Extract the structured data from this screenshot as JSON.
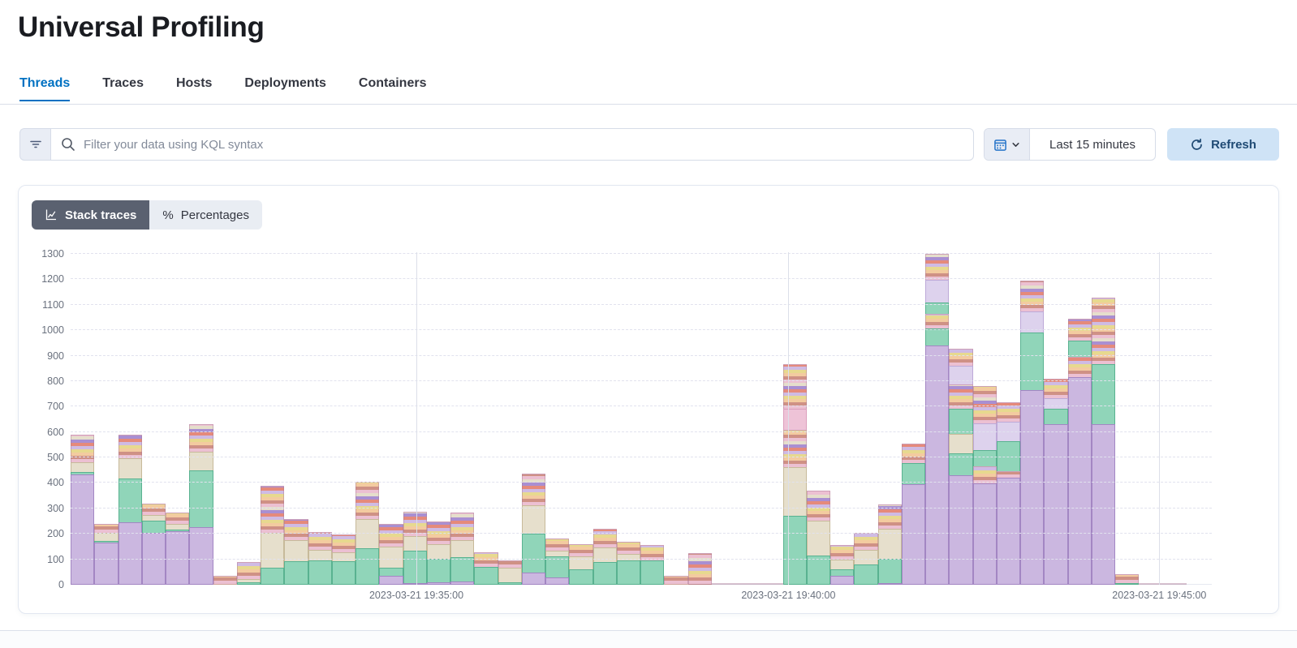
{
  "page": {
    "title": "Universal Profiling"
  },
  "tabs": [
    {
      "label": "Threads",
      "active": true
    },
    {
      "label": "Traces",
      "active": false
    },
    {
      "label": "Hosts",
      "active": false
    },
    {
      "label": "Deployments",
      "active": false
    },
    {
      "label": "Containers",
      "active": false
    }
  ],
  "search": {
    "placeholder": "Filter your data using KQL syntax",
    "value": "",
    "icons": [
      "filter-icon",
      "search-icon"
    ]
  },
  "time_picker": {
    "label": "Last 15 minutes",
    "icons": [
      "calendar-icon",
      "chevron-down-icon"
    ]
  },
  "refresh": {
    "label": "Refresh",
    "icon": "refresh-icon"
  },
  "view_toggle": [
    {
      "label": "Stack traces",
      "selected": true,
      "icon": "chart-line-icon"
    },
    {
      "label": "Percentages",
      "selected": false,
      "icon": "percent-icon",
      "glyph": "%"
    }
  ],
  "colors": {
    "accent_blue": "#0071c2",
    "refresh_bg": "#cfe3f6",
    "toggle_selected_bg": "#5a6170",
    "segment_purple": "#cbb7e0",
    "segment_green": "#90d5b9",
    "segment_tan": "#e6dfcc",
    "segment_lavender": "#ddd2ed",
    "segment_pink": "#eec3d7"
  },
  "chart_data": {
    "type": "bar",
    "stacked": true,
    "title": "",
    "xlabel": "",
    "ylabel": "",
    "ylim": [
      0,
      1300
    ],
    "grid": true,
    "legend": false,
    "y_ticks": [
      0,
      100,
      200,
      300,
      400,
      500,
      600,
      700,
      800,
      900,
      1000,
      1100,
      1200,
      1300
    ],
    "x_gridlines": [
      {
        "label": "2023-03-21 19:35:00",
        "pos_pct": 30.3
      },
      {
        "label": "2023-03-21 19:40:00",
        "pos_pct": 62.9
      },
      {
        "label": "2023-03-21 19:45:00",
        "pos_pct": 95.4
      }
    ],
    "segment_legend": {
      "P": "purple",
      "G": "green",
      "T": "tan",
      "L": "lavender",
      "K": "pink",
      "M": "mixed-stripes"
    },
    "bars": [
      {
        "total": 600,
        "segments": [
          [
            "P",
            435
          ],
          [
            "G",
            12
          ],
          [
            "T",
            40
          ],
          [
            "M",
            113
          ]
        ]
      },
      {
        "total": 250,
        "segments": [
          [
            "P",
            165
          ],
          [
            "G",
            10
          ],
          [
            "T",
            35
          ],
          [
            "M",
            40
          ]
        ]
      },
      {
        "total": 600,
        "segments": [
          [
            "P",
            245
          ],
          [
            "G",
            175
          ],
          [
            "T",
            85
          ],
          [
            "M",
            95
          ]
        ]
      },
      {
        "total": 330,
        "segments": [
          [
            "P",
            205
          ],
          [
            "G",
            50
          ],
          [
            "T",
            25
          ],
          [
            "M",
            50
          ]
        ]
      },
      {
        "total": 295,
        "segments": [
          [
            "P",
            210
          ],
          [
            "G",
            10
          ],
          [
            "T",
            25
          ],
          [
            "M",
            50
          ]
        ]
      },
      {
        "total": 640,
        "segments": [
          [
            "P",
            225
          ],
          [
            "G",
            228
          ],
          [
            "T",
            77
          ],
          [
            "M",
            110
          ]
        ]
      },
      {
        "total": 35,
        "segments": [
          [
            "M",
            35
          ]
        ]
      },
      {
        "total": 95,
        "segments": [
          [
            "G",
            10
          ],
          [
            "T",
            15
          ],
          [
            "M",
            70
          ]
        ]
      },
      {
        "total": 395,
        "segments": [
          [
            "G",
            68
          ],
          [
            "T",
            140
          ],
          [
            "M",
            187
          ]
        ]
      },
      {
        "total": 265,
        "segments": [
          [
            "G",
            92
          ],
          [
            "T",
            88
          ],
          [
            "M",
            85
          ]
        ]
      },
      {
        "total": 215,
        "segments": [
          [
            "G",
            95
          ],
          [
            "T",
            45
          ],
          [
            "M",
            75
          ]
        ]
      },
      {
        "total": 205,
        "segments": [
          [
            "G",
            92
          ],
          [
            "T",
            38
          ],
          [
            "M",
            75
          ]
        ]
      },
      {
        "total": 410,
        "segments": [
          [
            "G",
            145
          ],
          [
            "T",
            115
          ],
          [
            "M",
            150
          ]
        ]
      },
      {
        "total": 250,
        "segments": [
          [
            "P",
            35
          ],
          [
            "G",
            35
          ],
          [
            "T",
            85
          ],
          [
            "M",
            95
          ]
        ]
      },
      {
        "total": 295,
        "segments": [
          [
            "P",
            5
          ],
          [
            "G",
            130
          ],
          [
            "T",
            60
          ],
          [
            "M",
            100
          ]
        ]
      },
      {
        "total": 257,
        "segments": [
          [
            "P",
            10
          ],
          [
            "G",
            95
          ],
          [
            "T",
            60
          ],
          [
            "M",
            92
          ]
        ]
      },
      {
        "total": 292,
        "segments": [
          [
            "P",
            12
          ],
          [
            "G",
            100
          ],
          [
            "T",
            70
          ],
          [
            "M",
            110
          ]
        ]
      },
      {
        "total": 132,
        "segments": [
          [
            "G",
            70
          ],
          [
            "M",
            62
          ]
        ]
      },
      {
        "total": 102,
        "segments": [
          [
            "G",
            10
          ],
          [
            "T",
            60
          ],
          [
            "M",
            32
          ]
        ]
      },
      {
        "total": 445,
        "segments": [
          [
            "P",
            48
          ],
          [
            "G",
            155
          ],
          [
            "T",
            115
          ],
          [
            "M",
            127
          ]
        ]
      },
      {
        "total": 190,
        "segments": [
          [
            "P",
            30
          ],
          [
            "G",
            85
          ],
          [
            "T",
            25
          ],
          [
            "M",
            50
          ]
        ]
      },
      {
        "total": 165,
        "segments": [
          [
            "G",
            60
          ],
          [
            "T",
            55
          ],
          [
            "M",
            50
          ]
        ]
      },
      {
        "total": 227,
        "segments": [
          [
            "G",
            90
          ],
          [
            "T",
            60
          ],
          [
            "M",
            77
          ]
        ]
      },
      {
        "total": 175,
        "segments": [
          [
            "G",
            95
          ],
          [
            "T",
            30
          ],
          [
            "M",
            50
          ]
        ]
      },
      {
        "total": 160,
        "segments": [
          [
            "G",
            95
          ],
          [
            "M",
            65
          ]
        ]
      },
      {
        "total": 35,
        "segments": [
          [
            "M",
            35
          ]
        ]
      },
      {
        "total": 124,
        "segments": [
          [
            "M",
            124
          ]
        ]
      },
      {
        "total": 2,
        "segments": [
          [
            "M",
            2
          ]
        ]
      },
      {
        "total": 6,
        "segments": [
          [
            "M",
            6
          ]
        ]
      },
      {
        "total": 3,
        "segments": [
          [
            "M",
            3
          ]
        ]
      },
      {
        "total": 880,
        "segments": [
          [
            "G",
            270
          ],
          [
            "T",
            195
          ],
          [
            "M",
            150
          ],
          [
            "K",
            85
          ],
          [
            "M",
            180
          ]
        ]
      },
      {
        "total": 375,
        "segments": [
          [
            "G",
            115
          ],
          [
            "T",
            140
          ],
          [
            "M",
            120
          ]
        ]
      },
      {
        "total": 165,
        "segments": [
          [
            "P",
            35
          ],
          [
            "G",
            30
          ],
          [
            "T",
            40
          ],
          [
            "M",
            60
          ]
        ]
      },
      {
        "total": 210,
        "segments": [
          [
            "G",
            80
          ],
          [
            "T",
            60
          ],
          [
            "M",
            70
          ]
        ]
      },
      {
        "total": 325,
        "segments": [
          [
            "P",
            5
          ],
          [
            "G",
            100
          ],
          [
            "T",
            120
          ],
          [
            "M",
            100
          ]
        ]
      },
      {
        "total": 560,
        "segments": [
          [
            "P",
            395
          ],
          [
            "G",
            85
          ],
          [
            "M",
            80
          ]
        ]
      },
      {
        "total": 1315,
        "segments": [
          [
            "P",
            940
          ],
          [
            "G",
            70
          ],
          [
            "M",
            60
          ],
          [
            "G",
            50
          ],
          [
            "L",
            90
          ],
          [
            "M",
            105
          ]
        ]
      },
      {
        "total": 945,
        "segments": [
          [
            "P",
            430
          ],
          [
            "G",
            90
          ],
          [
            "T",
            80
          ],
          [
            "G",
            100
          ],
          [
            "M",
            100
          ],
          [
            "L",
            75
          ],
          [
            "M",
            70
          ]
        ]
      },
      {
        "total": 795,
        "segments": [
          [
            "P",
            400
          ],
          [
            "M",
            70
          ],
          [
            "G",
            65
          ],
          [
            "L",
            110
          ],
          [
            "M",
            150
          ]
        ]
      },
      {
        "total": 730,
        "segments": [
          [
            "P",
            420
          ],
          [
            "M",
            30
          ],
          [
            "G",
            120
          ],
          [
            "L",
            80
          ],
          [
            "M",
            80
          ]
        ]
      },
      {
        "total": 1204,
        "segments": [
          [
            "P",
            765
          ],
          [
            "G",
            230
          ],
          [
            "L",
            85
          ],
          [
            "M",
            124
          ]
        ]
      },
      {
        "total": 820,
        "segments": [
          [
            "P",
            630
          ],
          [
            "G",
            65
          ],
          [
            "L",
            45
          ],
          [
            "M",
            80
          ]
        ]
      },
      {
        "total": 1055,
        "segments": [
          [
            "P",
            815
          ],
          [
            "M",
            85
          ],
          [
            "G",
            65
          ],
          [
            "M",
            90
          ]
        ]
      },
      {
        "total": 1135,
        "segments": [
          [
            "P",
            630
          ],
          [
            "G",
            240
          ],
          [
            "M",
            265
          ]
        ]
      },
      {
        "total": 45,
        "segments": [
          [
            "G",
            8
          ],
          [
            "M",
            37
          ]
        ]
      },
      {
        "total": 6,
        "segments": [
          [
            "M",
            6
          ]
        ]
      },
      {
        "total": 4,
        "segments": [
          [
            "M",
            4
          ]
        ]
      }
    ]
  }
}
